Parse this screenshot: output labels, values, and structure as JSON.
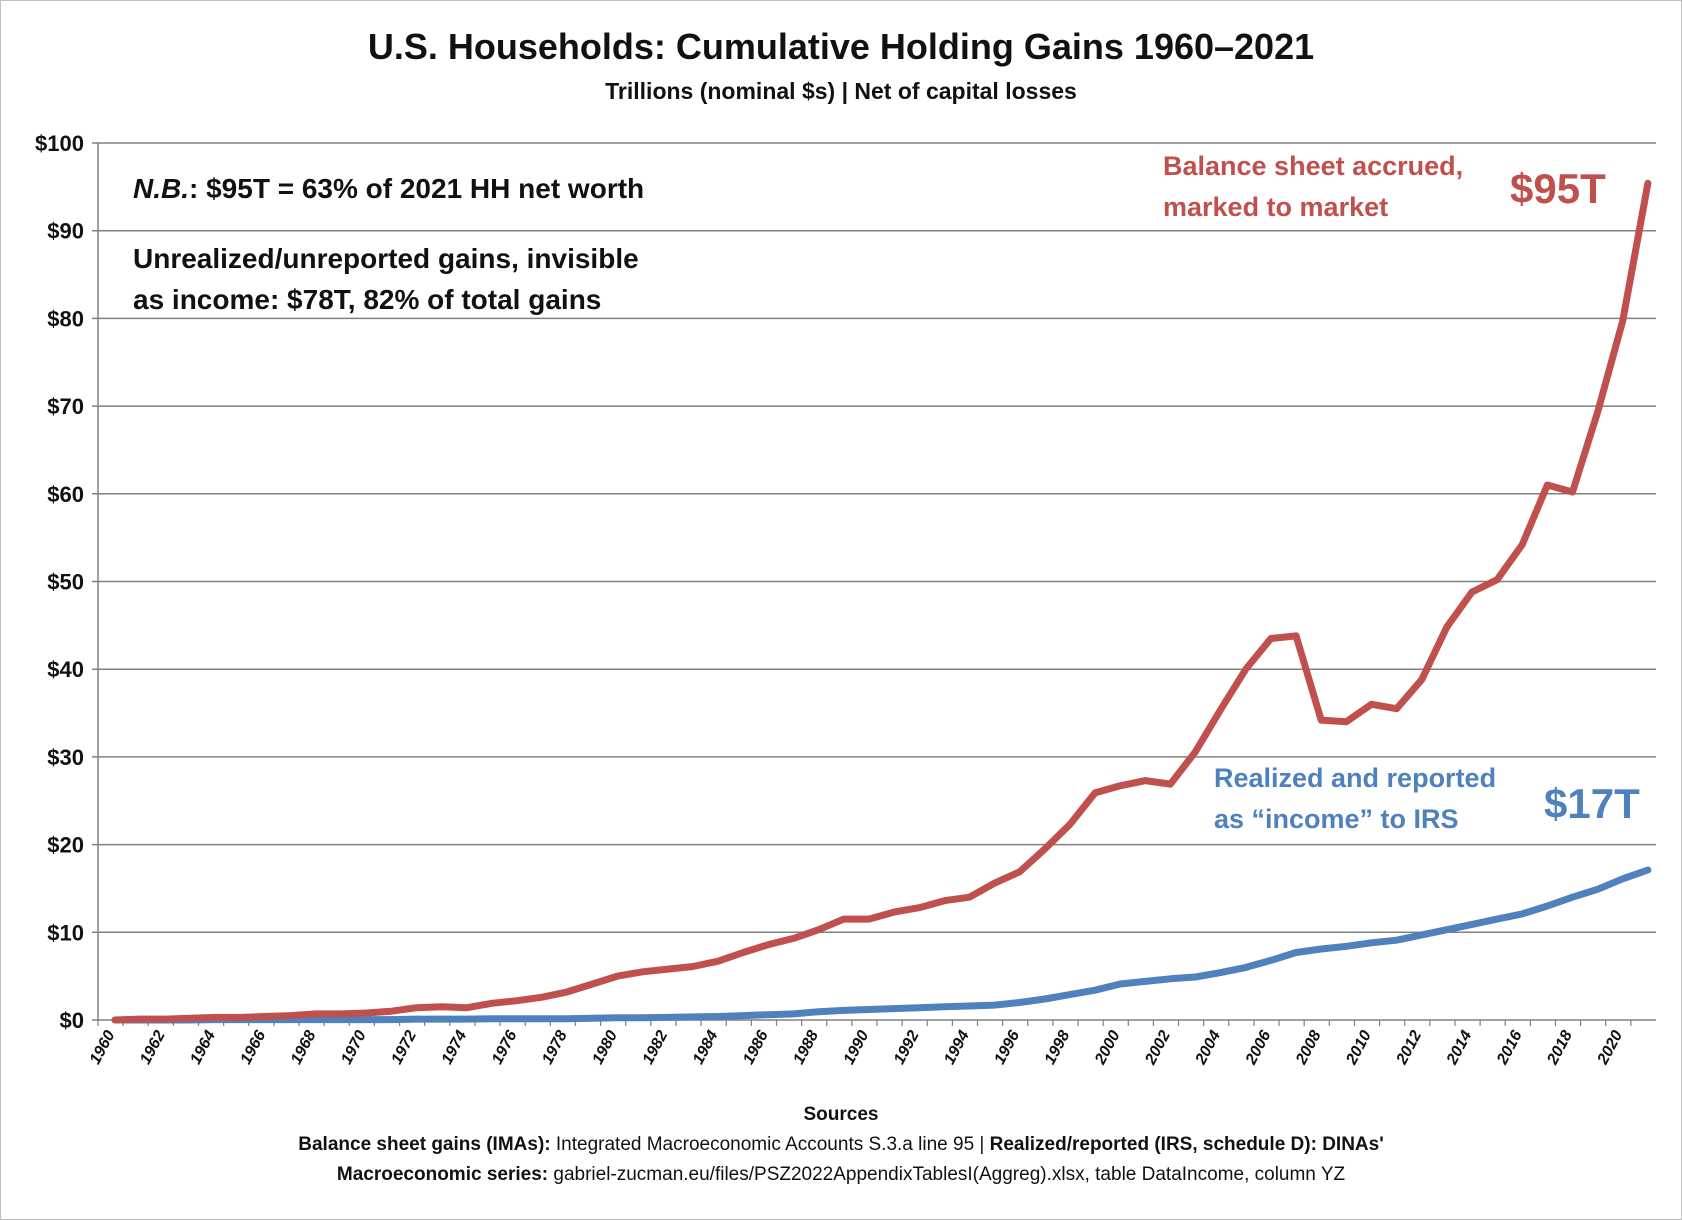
{
  "title": "U.S. Households: Cumulative Holding Gains 1960–2021",
  "subtitle": "Trillions (nominal $s) | Net of capital losses",
  "notes": {
    "nb_prefix": "N.B.",
    "nb_text": ": $95T = 63% of 2021 HH net worth",
    "unrealized_line1": "Unrealized/unreported gains, invisible",
    "unrealized_line2": "as income: $78T, 82% of total gains"
  },
  "annotations": {
    "red_line1": "Balance sheet accrued,",
    "red_line2": "marked to market",
    "red_value": "$95T",
    "blue_line1": "Realized and reported",
    "blue_line2": "as “income” to IRS",
    "blue_value": "$17T"
  },
  "sources": {
    "heading": "Sources",
    "line1_bold1": "Balance sheet gains (IMAs):",
    "line1_text": " Integrated Macroeconomic Accounts S.3.a line 95 | ",
    "line1_bold2": "Realized/reported (IRS, schedule D): DINAs'",
    "line2_bold": "Macroeconomic series:",
    "line2_text": " gabriel-zucman.eu/files/PSZ2022AppendixTablesI(Aggreg).xlsx, table DataIncome, column YZ"
  },
  "colors": {
    "balance": "#c0504d",
    "realized": "#4f81bd",
    "grid": "#808080"
  },
  "chart_data": {
    "type": "line",
    "title": "U.S. Households: Cumulative Holding Gains 1960–2021",
    "xlabel": "",
    "ylabel": "Trillions (nominal $s)",
    "ylim": [
      0,
      100
    ],
    "y_ticks": [
      0,
      10,
      20,
      30,
      40,
      50,
      60,
      70,
      80,
      90,
      100
    ],
    "y_tick_labels": [
      "$0",
      "$10",
      "$20",
      "$30",
      "$40",
      "$50",
      "$60",
      "$70",
      "$80",
      "$90",
      "$100"
    ],
    "x_tick_labels": [
      "1960",
      "1962",
      "1964",
      "1966",
      "1968",
      "1970",
      "1972",
      "1974",
      "1976",
      "1978",
      "1980",
      "1982",
      "1984",
      "1986",
      "1988",
      "1990",
      "1992",
      "1994",
      "1996",
      "1998",
      "2000",
      "2002",
      "2004",
      "2006",
      "2008",
      "2010",
      "2012",
      "2014",
      "2016",
      "2018",
      "2020"
    ],
    "x": [
      1960,
      1961,
      1962,
      1963,
      1964,
      1965,
      1966,
      1967,
      1968,
      1969,
      1970,
      1971,
      1972,
      1973,
      1974,
      1975,
      1976,
      1977,
      1978,
      1979,
      1980,
      1981,
      1982,
      1983,
      1984,
      1985,
      1986,
      1987,
      1988,
      1989,
      1990,
      1991,
      1992,
      1993,
      1994,
      1995,
      1996,
      1997,
      1998,
      1999,
      2000,
      2001,
      2002,
      2003,
      2004,
      2005,
      2006,
      2007,
      2008,
      2009,
      2010,
      2011,
      2012,
      2013,
      2014,
      2015,
      2016,
      2017,
      2018,
      2019,
      2020,
      2021
    ],
    "series": [
      {
        "name": "Balance sheet accrued, marked to market",
        "values": [
          0,
          0.1,
          0.1,
          0.2,
          0.3,
          0.3,
          0.4,
          0.5,
          0.7,
          0.7,
          0.8,
          1.0,
          1.4,
          1.5,
          1.4,
          1.9,
          2.2,
          2.6,
          3.2,
          4.1,
          5.0,
          5.5,
          5.8,
          6.1,
          6.7,
          7.7,
          8.6,
          9.3,
          10.3,
          11.5,
          11.5,
          12.3,
          12.8,
          13.6,
          14.0,
          15.6,
          16.9,
          19.5,
          22.3,
          25.9,
          26.7,
          27.3,
          26.9,
          30.6,
          35.4,
          40.0,
          43.5,
          43.8,
          34.2,
          34.0,
          36.0,
          35.5,
          38.8,
          44.8,
          48.8,
          50.2,
          54.2,
          61.0,
          60.2,
          69.3,
          79.7,
          95.4
        ]
      },
      {
        "name": "Realized and reported as “income” to IRS",
        "values": [
          0,
          0,
          0,
          0,
          0.05,
          0.05,
          0.05,
          0.05,
          0.05,
          0.05,
          0.05,
          0.05,
          0.1,
          0.1,
          0.1,
          0.15,
          0.15,
          0.15,
          0.15,
          0.2,
          0.25,
          0.25,
          0.3,
          0.35,
          0.4,
          0.5,
          0.6,
          0.7,
          0.95,
          1.1,
          1.2,
          1.3,
          1.4,
          1.5,
          1.6,
          1.7,
          2.0,
          2.4,
          2.9,
          3.4,
          4.1,
          4.4,
          4.7,
          4.9,
          5.4,
          6.0,
          6.8,
          7.7,
          8.1,
          8.4,
          8.8,
          9.1,
          9.7,
          10.3,
          10.9,
          11.5,
          12.1,
          13.0,
          14.0,
          14.9,
          16.1,
          17.1
        ]
      }
    ]
  }
}
